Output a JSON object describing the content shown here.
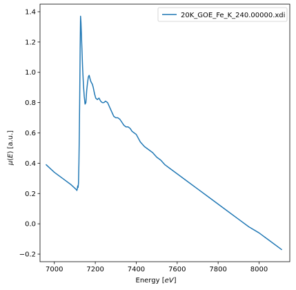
{
  "chart_data": {
    "type": "line",
    "title": "",
    "xlabel_prefix": "Energy [",
    "xlabel_unit": "eV",
    "xlabel_suffix": "]",
    "ylabel_prefix": "(",
    "ylabel_mu": "μ",
    "ylabel_var": "E",
    "ylabel_suffix": ") [a.u.]",
    "xlim": [
      6930,
      8150
    ],
    "ylim": [
      -0.25,
      1.45
    ],
    "xticks": [
      7000,
      7200,
      7400,
      7600,
      7800,
      8000
    ],
    "yticks": [
      -0.2,
      0.0,
      0.2,
      0.4,
      0.6,
      0.8,
      1.0,
      1.2,
      1.4
    ],
    "xtick_labels": [
      "7000",
      "7200",
      "7400",
      "7600",
      "7800",
      "8000"
    ],
    "ytick_labels": [
      "−0.2",
      "0.0",
      "0.2",
      "0.4",
      "0.6",
      "0.8",
      "1.0",
      "1.2",
      "1.4"
    ],
    "grid": false,
    "legend_position": "top-right",
    "series": [
      {
        "name": "20K_GOE_Fe_K_240.00000.xdi",
        "color": "#1f77b4",
        "x": [
          6960,
          7000,
          7040,
          7080,
          7100,
          7108,
          7110,
          7112,
          7114,
          7116,
          7118,
          7120,
          7122,
          7124,
          7126,
          7128,
          7130,
          7134,
          7138,
          7142,
          7146,
          7150,
          7154,
          7158,
          7162,
          7166,
          7170,
          7174,
          7178,
          7182,
          7186,
          7190,
          7196,
          7202,
          7210,
          7218,
          7226,
          7234,
          7242,
          7250,
          7260,
          7270,
          7280,
          7290,
          7300,
          7310,
          7320,
          7330,
          7340,
          7350,
          7360,
          7370,
          7380,
          7390,
          7400,
          7420,
          7440,
          7460,
          7480,
          7500,
          7520,
          7540,
          7560,
          7580,
          7600,
          7650,
          7700,
          7750,
          7800,
          7850,
          7900,
          7950,
          8000,
          8050,
          8110
        ],
        "y": [
          0.39,
          0.34,
          0.3,
          0.26,
          0.235,
          0.225,
          0.22,
          0.23,
          0.25,
          0.24,
          0.27,
          0.4,
          0.6,
          0.85,
          1.15,
          1.37,
          1.33,
          1.18,
          1.03,
          0.92,
          0.84,
          0.79,
          0.8,
          0.88,
          0.93,
          0.97,
          0.98,
          0.96,
          0.94,
          0.93,
          0.92,
          0.9,
          0.86,
          0.83,
          0.82,
          0.83,
          0.81,
          0.8,
          0.8,
          0.81,
          0.8,
          0.77,
          0.74,
          0.71,
          0.7,
          0.7,
          0.69,
          0.67,
          0.65,
          0.64,
          0.64,
          0.63,
          0.61,
          0.6,
          0.59,
          0.54,
          0.51,
          0.49,
          0.47,
          0.44,
          0.42,
          0.39,
          0.37,
          0.35,
          0.33,
          0.28,
          0.23,
          0.18,
          0.13,
          0.08,
          0.03,
          -0.02,
          -0.06,
          -0.11,
          -0.17
        ]
      }
    ]
  }
}
